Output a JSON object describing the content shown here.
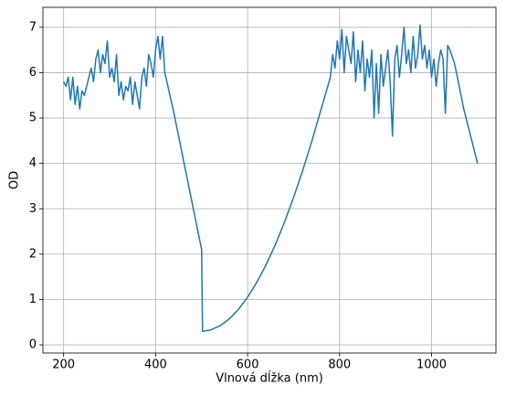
{
  "chart_data": {
    "type": "line",
    "xlabel": "Vlnová dĺžka (nm)",
    "ylabel": "OD",
    "x": [
      200,
      205,
      210,
      215,
      220,
      225,
      230,
      235,
      240,
      245,
      250,
      255,
      260,
      265,
      270,
      275,
      280,
      285,
      290,
      295,
      300,
      305,
      310,
      315,
      320,
      325,
      330,
      335,
      340,
      345,
      350,
      355,
      360,
      365,
      370,
      375,
      380,
      385,
      390,
      395,
      400,
      405,
      410,
      415,
      420,
      440,
      460,
      480,
      500,
      502,
      520,
      540,
      560,
      580,
      600,
      620,
      640,
      660,
      680,
      700,
      720,
      740,
      760,
      780,
      785,
      790,
      795,
      800,
      805,
      810,
      815,
      820,
      825,
      830,
      835,
      840,
      845,
      850,
      855,
      860,
      865,
      870,
      875,
      880,
      885,
      890,
      895,
      900,
      905,
      910,
      915,
      920,
      925,
      930,
      935,
      940,
      945,
      950,
      955,
      960,
      965,
      970,
      975,
      980,
      985,
      990,
      995,
      1000,
      1005,
      1010,
      1015,
      1020,
      1025,
      1030,
      1035,
      1040,
      1050,
      1060,
      1070,
      1080,
      1090,
      1100
    ],
    "series": [
      {
        "name": "OD",
        "color": "#1f77b4",
        "values": [
          5.8,
          5.7,
          5.9,
          5.4,
          5.9,
          5.3,
          5.7,
          5.2,
          5.6,
          5.5,
          5.7,
          5.9,
          6.1,
          5.8,
          6.3,
          6.5,
          6.0,
          6.4,
          6.2,
          6.7,
          5.9,
          6.1,
          5.8,
          6.4,
          5.5,
          5.8,
          5.4,
          5.7,
          5.6,
          5.9,
          5.3,
          5.8,
          5.5,
          5.2,
          5.9,
          6.1,
          5.7,
          6.4,
          6.2,
          5.9,
          6.5,
          6.8,
          6.3,
          6.8,
          6.0,
          5.1,
          4.1,
          3.1,
          2.1,
          0.3,
          0.33,
          0.42,
          0.57,
          0.78,
          1.05,
          1.38,
          1.76,
          2.2,
          2.7,
          3.25,
          3.85,
          4.5,
          5.2,
          5.9,
          6.4,
          6.1,
          6.7,
          6.3,
          6.95,
          6.0,
          6.8,
          6.5,
          6.2,
          6.9,
          5.8,
          6.5,
          6.0,
          6.7,
          5.6,
          6.3,
          5.9,
          6.5,
          5.0,
          6.2,
          5.1,
          6.4,
          5.7,
          6.1,
          6.5,
          5.8,
          4.6,
          6.3,
          6.6,
          5.9,
          6.4,
          7.0,
          6.2,
          6.5,
          6.0,
          6.8,
          6.1,
          6.4,
          7.05,
          6.3,
          6.6,
          6.1,
          6.5,
          5.9,
          6.3,
          5.7,
          6.2,
          6.5,
          6.3,
          5.1,
          6.6,
          6.5,
          6.2,
          5.7,
          5.2,
          4.8,
          4.4,
          4.0
        ]
      }
    ],
    "xlim": [
      155,
      1140
    ],
    "ylim": [
      -0.18,
      7.44
    ],
    "xticks": [
      200,
      400,
      600,
      800,
      1000
    ],
    "yticks": [
      0,
      1,
      2,
      3,
      4,
      5,
      6,
      7
    ],
    "grid": true
  }
}
